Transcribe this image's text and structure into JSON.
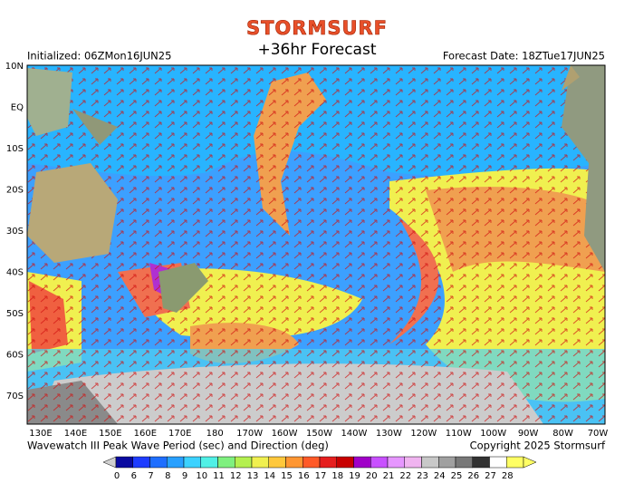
{
  "header": {
    "brand": "STORMSURF",
    "title": "+36hr Forecast",
    "initialized": "Initialized: 06ZMon16JUN25",
    "forecast_date": "Forecast Date: 18ZTue17JUN25"
  },
  "map": {
    "lat_labels": [
      "10N",
      "EQ",
      "10S",
      "20S",
      "30S",
      "40S",
      "50S",
      "60S",
      "70S"
    ],
    "lon_labels": [
      "130E",
      "140E",
      "150E",
      "160E",
      "170E",
      "180",
      "170W",
      "160W",
      "150W",
      "140W",
      "130W",
      "120W",
      "110W",
      "100W",
      "90W",
      "80W",
      "70W"
    ]
  },
  "footer": {
    "caption": "Wavewatch III Peak Wave Period (sec) and Direction (deg)",
    "copyright": "Copyright 2025 Stormsurf"
  },
  "colorbar": {
    "ticks": [
      0,
      6,
      7,
      8,
      9,
      10,
      11,
      12,
      13,
      14,
      15,
      16,
      17,
      18,
      19,
      20,
      21,
      22,
      23,
      24,
      25,
      26,
      27,
      28
    ],
    "colors": [
      "#0a0aa0",
      "#1e3cff",
      "#1e6eff",
      "#28a0ff",
      "#3cd2ff",
      "#50f0e6",
      "#7ff07f",
      "#b4f050",
      "#f0f050",
      "#ffc83c",
      "#ff9632",
      "#ff5a28",
      "#e61e1e",
      "#c80000",
      "#a000c8",
      "#c850ff",
      "#e696ff",
      "#f0b4f0",
      "#c8c8c8",
      "#a0a0a0",
      "#787878",
      "#323232",
      "#ffffff",
      "#ffff64"
    ]
  }
}
